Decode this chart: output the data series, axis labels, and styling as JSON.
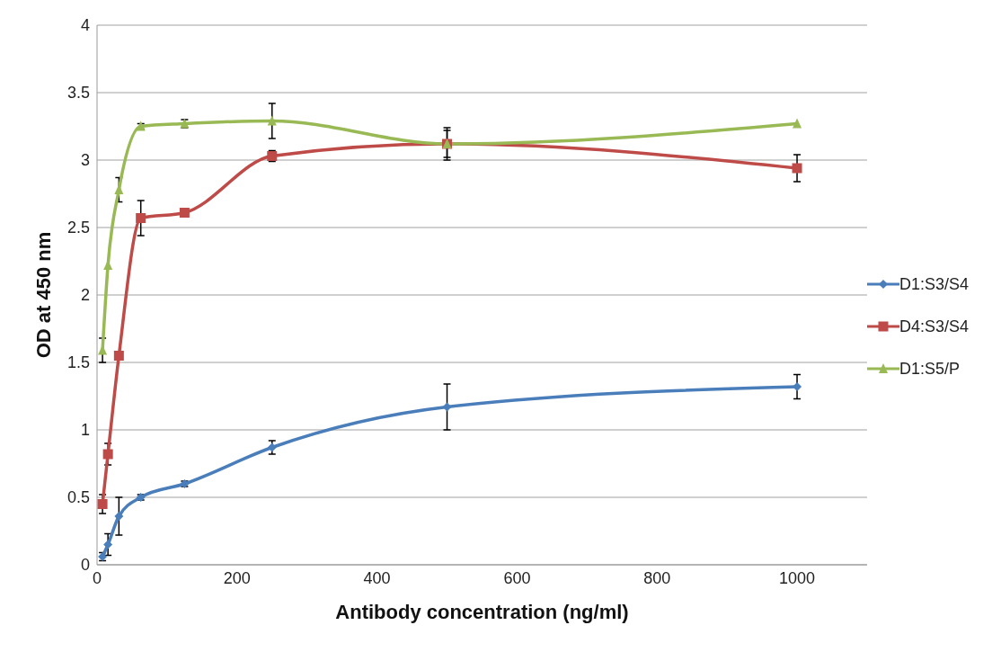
{
  "chart_data": {
    "type": "line",
    "xlabel": "Antibody concentration (ng/ml)",
    "ylabel": "OD at 450 nm",
    "x": [
      7.8,
      15.6,
      31.25,
      62.5,
      125,
      250,
      500,
      1000
    ],
    "series": [
      {
        "name": "D1:S3/S4",
        "color": "#4a7ebb",
        "marker": "diamond",
        "values": [
          0.06,
          0.15,
          0.36,
          0.5,
          0.6,
          0.87,
          1.17,
          1.32
        ],
        "errors": [
          0.03,
          0.08,
          0.14,
          0.02,
          0.02,
          0.05,
          0.17,
          0.09
        ]
      },
      {
        "name": "D4:S3/S4",
        "color": "#be4b48",
        "marker": "square",
        "values": [
          0.45,
          0.82,
          1.55,
          2.57,
          2.61,
          3.03,
          3.12,
          2.94
        ],
        "errors": [
          0.07,
          0.08,
          null,
          0.13,
          null,
          0.04,
          0.1,
          0.1
        ]
      },
      {
        "name": "D1:S5/P",
        "color": "#98b954",
        "marker": "triangle",
        "values": [
          1.59,
          2.22,
          2.78,
          3.25,
          3.27,
          3.29,
          3.12,
          3.27
        ],
        "errors": [
          0.09,
          null,
          0.09,
          0.02,
          0.03,
          0.13,
          0.12,
          null
        ]
      }
    ],
    "xlim": [
      0,
      1100
    ],
    "xticks": [
      0,
      200,
      400,
      600,
      800,
      1000
    ],
    "ylim": [
      0,
      4
    ],
    "yticks": [
      0,
      0.5,
      1,
      1.5,
      2,
      2.5,
      3,
      3.5,
      4
    ],
    "grid": "y",
    "legend": "right"
  }
}
